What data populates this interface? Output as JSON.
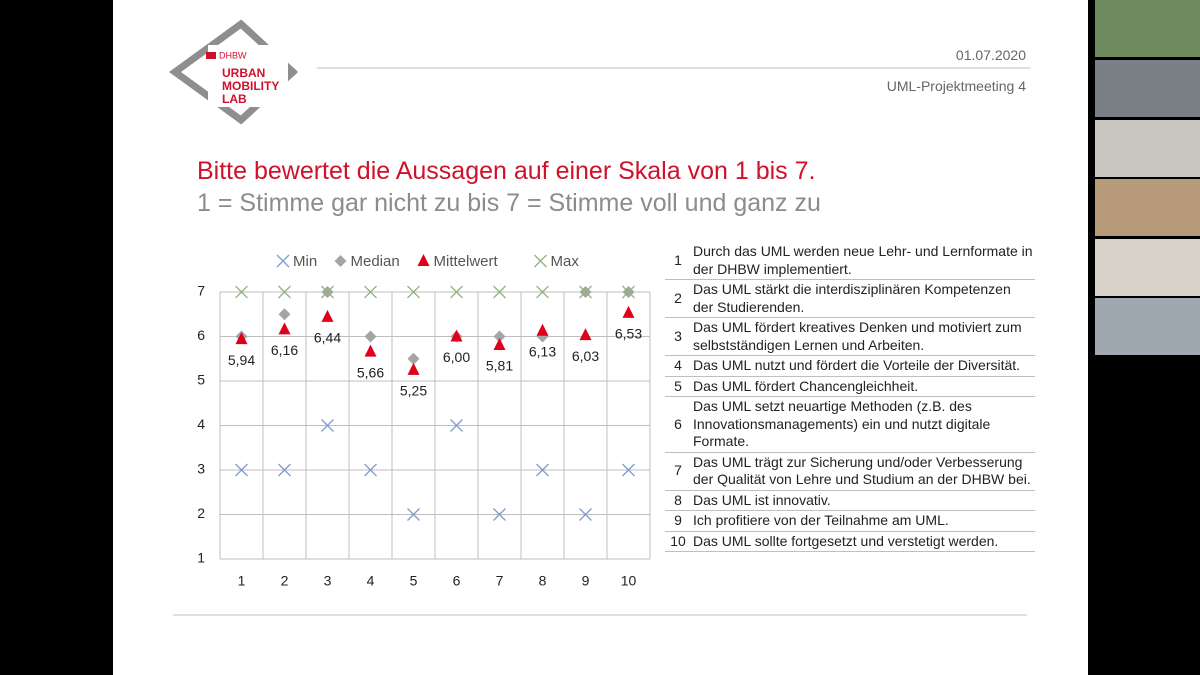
{
  "header": {
    "logo_org": "DHBW",
    "logo_lines": [
      "URBAN",
      "MOBILITY",
      "LAB"
    ],
    "date": "01.07.2020",
    "meeting": "UML-Projektmeeting 4"
  },
  "slide": {
    "title": "Bitte bewertet die Aussagen auf einer Skala von 1 bis 7.",
    "subtitle": "1 = Stimme gar nicht zu bis 7 = Stimme voll und ganz zu"
  },
  "chart_data": {
    "type": "scatter",
    "categories": [
      "1",
      "2",
      "3",
      "4",
      "5",
      "6",
      "7",
      "8",
      "9",
      "10"
    ],
    "series": [
      {
        "name": "Min",
        "color": "#7f9ccf",
        "marker": "x",
        "values": [
          3,
          3,
          4,
          3,
          2,
          4,
          2,
          3,
          2,
          3
        ]
      },
      {
        "name": "Median",
        "color": "#a5a5a5",
        "marker": "diamond",
        "values": [
          6,
          6.5,
          7,
          6,
          5.5,
          6,
          6,
          6,
          7,
          7
        ]
      },
      {
        "name": "Mittelwert",
        "color": "#e0001b",
        "marker": "triangle",
        "values": [
          5.94,
          6.16,
          6.44,
          5.66,
          5.25,
          6.0,
          5.81,
          6.13,
          6.03,
          6.53
        ],
        "value_labels": [
          "5,94",
          "6,16",
          "6,44",
          "5,66",
          "5,25",
          "6,00",
          "5,81",
          "6,13",
          "6,03",
          "6,53"
        ]
      },
      {
        "name": "Max",
        "color": "#93b47e",
        "marker": "x",
        "values": [
          7,
          7,
          7,
          7,
          7,
          7,
          7,
          7,
          7,
          7
        ]
      }
    ],
    "ylim": [
      1,
      7
    ],
    "yticks": [
      1,
      2,
      3,
      4,
      5,
      6,
      7
    ],
    "grid": true,
    "legend": "top"
  },
  "table": {
    "rows": [
      [
        "1",
        "Durch das UML werden neue Lehr- und Lernformate in der DHBW implementiert."
      ],
      [
        "2",
        "Das UML stärkt die interdisziplinären Kompetenzen der Studierenden."
      ],
      [
        "3",
        "Das UML fördert kreatives Denken und motiviert zum selbstständigen Lernen und Arbeiten."
      ],
      [
        "4",
        "Das UML nutzt und fördert die Vorteile der Diversität."
      ],
      [
        "5",
        "Das UML fördert Chancengleichheit."
      ],
      [
        "6",
        "Das UML setzt neuartige Methoden (z.B. des Innovationsmanagements) ein und nutzt digitale Formate."
      ],
      [
        "7",
        "Das UML trägt zur Sicherung und/oder Verbesserung der Qualität von Lehre und Studium an der DHBW bei."
      ],
      [
        "8",
        "Das UML ist innovativ."
      ],
      [
        "9",
        "Ich profitiere von der Teilnahme am UML."
      ],
      [
        "10",
        "Das UML sollte fortgesetzt und verstetigt werden."
      ]
    ]
  }
}
